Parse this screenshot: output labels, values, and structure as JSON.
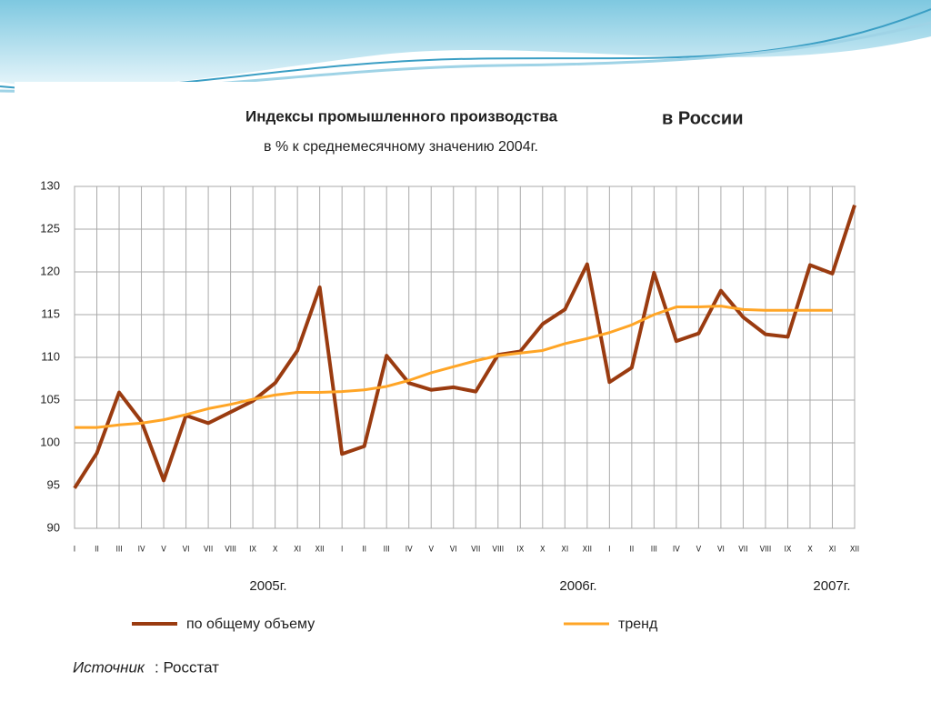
{
  "chart_data": {
    "type": "line",
    "title": "Индексы промышленного производства",
    "title_suffix": "в России",
    "subtitle": "в % к среднемесячному значению 2004г.",
    "categories": [
      "I",
      "II",
      "III",
      "IV",
      "V",
      "VI",
      "VII",
      "VIII",
      "IX",
      "X",
      "XI",
      "XII",
      "I",
      "II",
      "III",
      "IV",
      "V",
      "VI",
      "VII",
      "VIII",
      "IX",
      "X",
      "XI",
      "XII",
      "I",
      "II",
      "III",
      "IV",
      "V",
      "VI",
      "VII",
      "VIII",
      "IX",
      "X",
      "XI",
      "XII"
    ],
    "year_labels": [
      "2005г.",
      "2006г.",
      "2007г."
    ],
    "series": [
      {
        "name": "по общему объему",
        "color": "#9a3b10",
        "values": [
          94.7,
          98.8,
          105.9,
          102.5,
          95.6,
          103.2,
          102.3,
          103.6,
          104.9,
          107.0,
          110.8,
          118.2,
          98.7,
          99.6,
          110.2,
          107.0,
          106.2,
          106.5,
          106.0,
          110.3,
          110.7,
          113.9,
          115.6,
          120.9,
          107.1,
          108.8,
          119.9,
          111.9,
          112.8,
          117.8,
          114.7,
          112.7,
          112.4,
          120.8,
          119.8,
          127.8
        ]
      },
      {
        "name": "тренд",
        "color": "#ffa526",
        "values": [
          101.8,
          101.8,
          102.1,
          102.3,
          102.7,
          103.3,
          104.0,
          104.5,
          105.1,
          105.6,
          105.9,
          105.9,
          106.0,
          106.2,
          106.6,
          107.3,
          108.2,
          108.9,
          109.6,
          110.2,
          110.5,
          110.8,
          111.6,
          112.2,
          112.9,
          113.8,
          115.0,
          115.9,
          115.9,
          116.0,
          115.6,
          115.5,
          115.5,
          115.5,
          115.5,
          null
        ]
      }
    ],
    "ylim": [
      90,
      130
    ],
    "yticks": [
      90,
      95,
      100,
      105,
      110,
      115,
      120,
      125,
      130
    ],
    "grid": true,
    "source": {
      "label": "Источник",
      "text": ": Росстат"
    }
  }
}
